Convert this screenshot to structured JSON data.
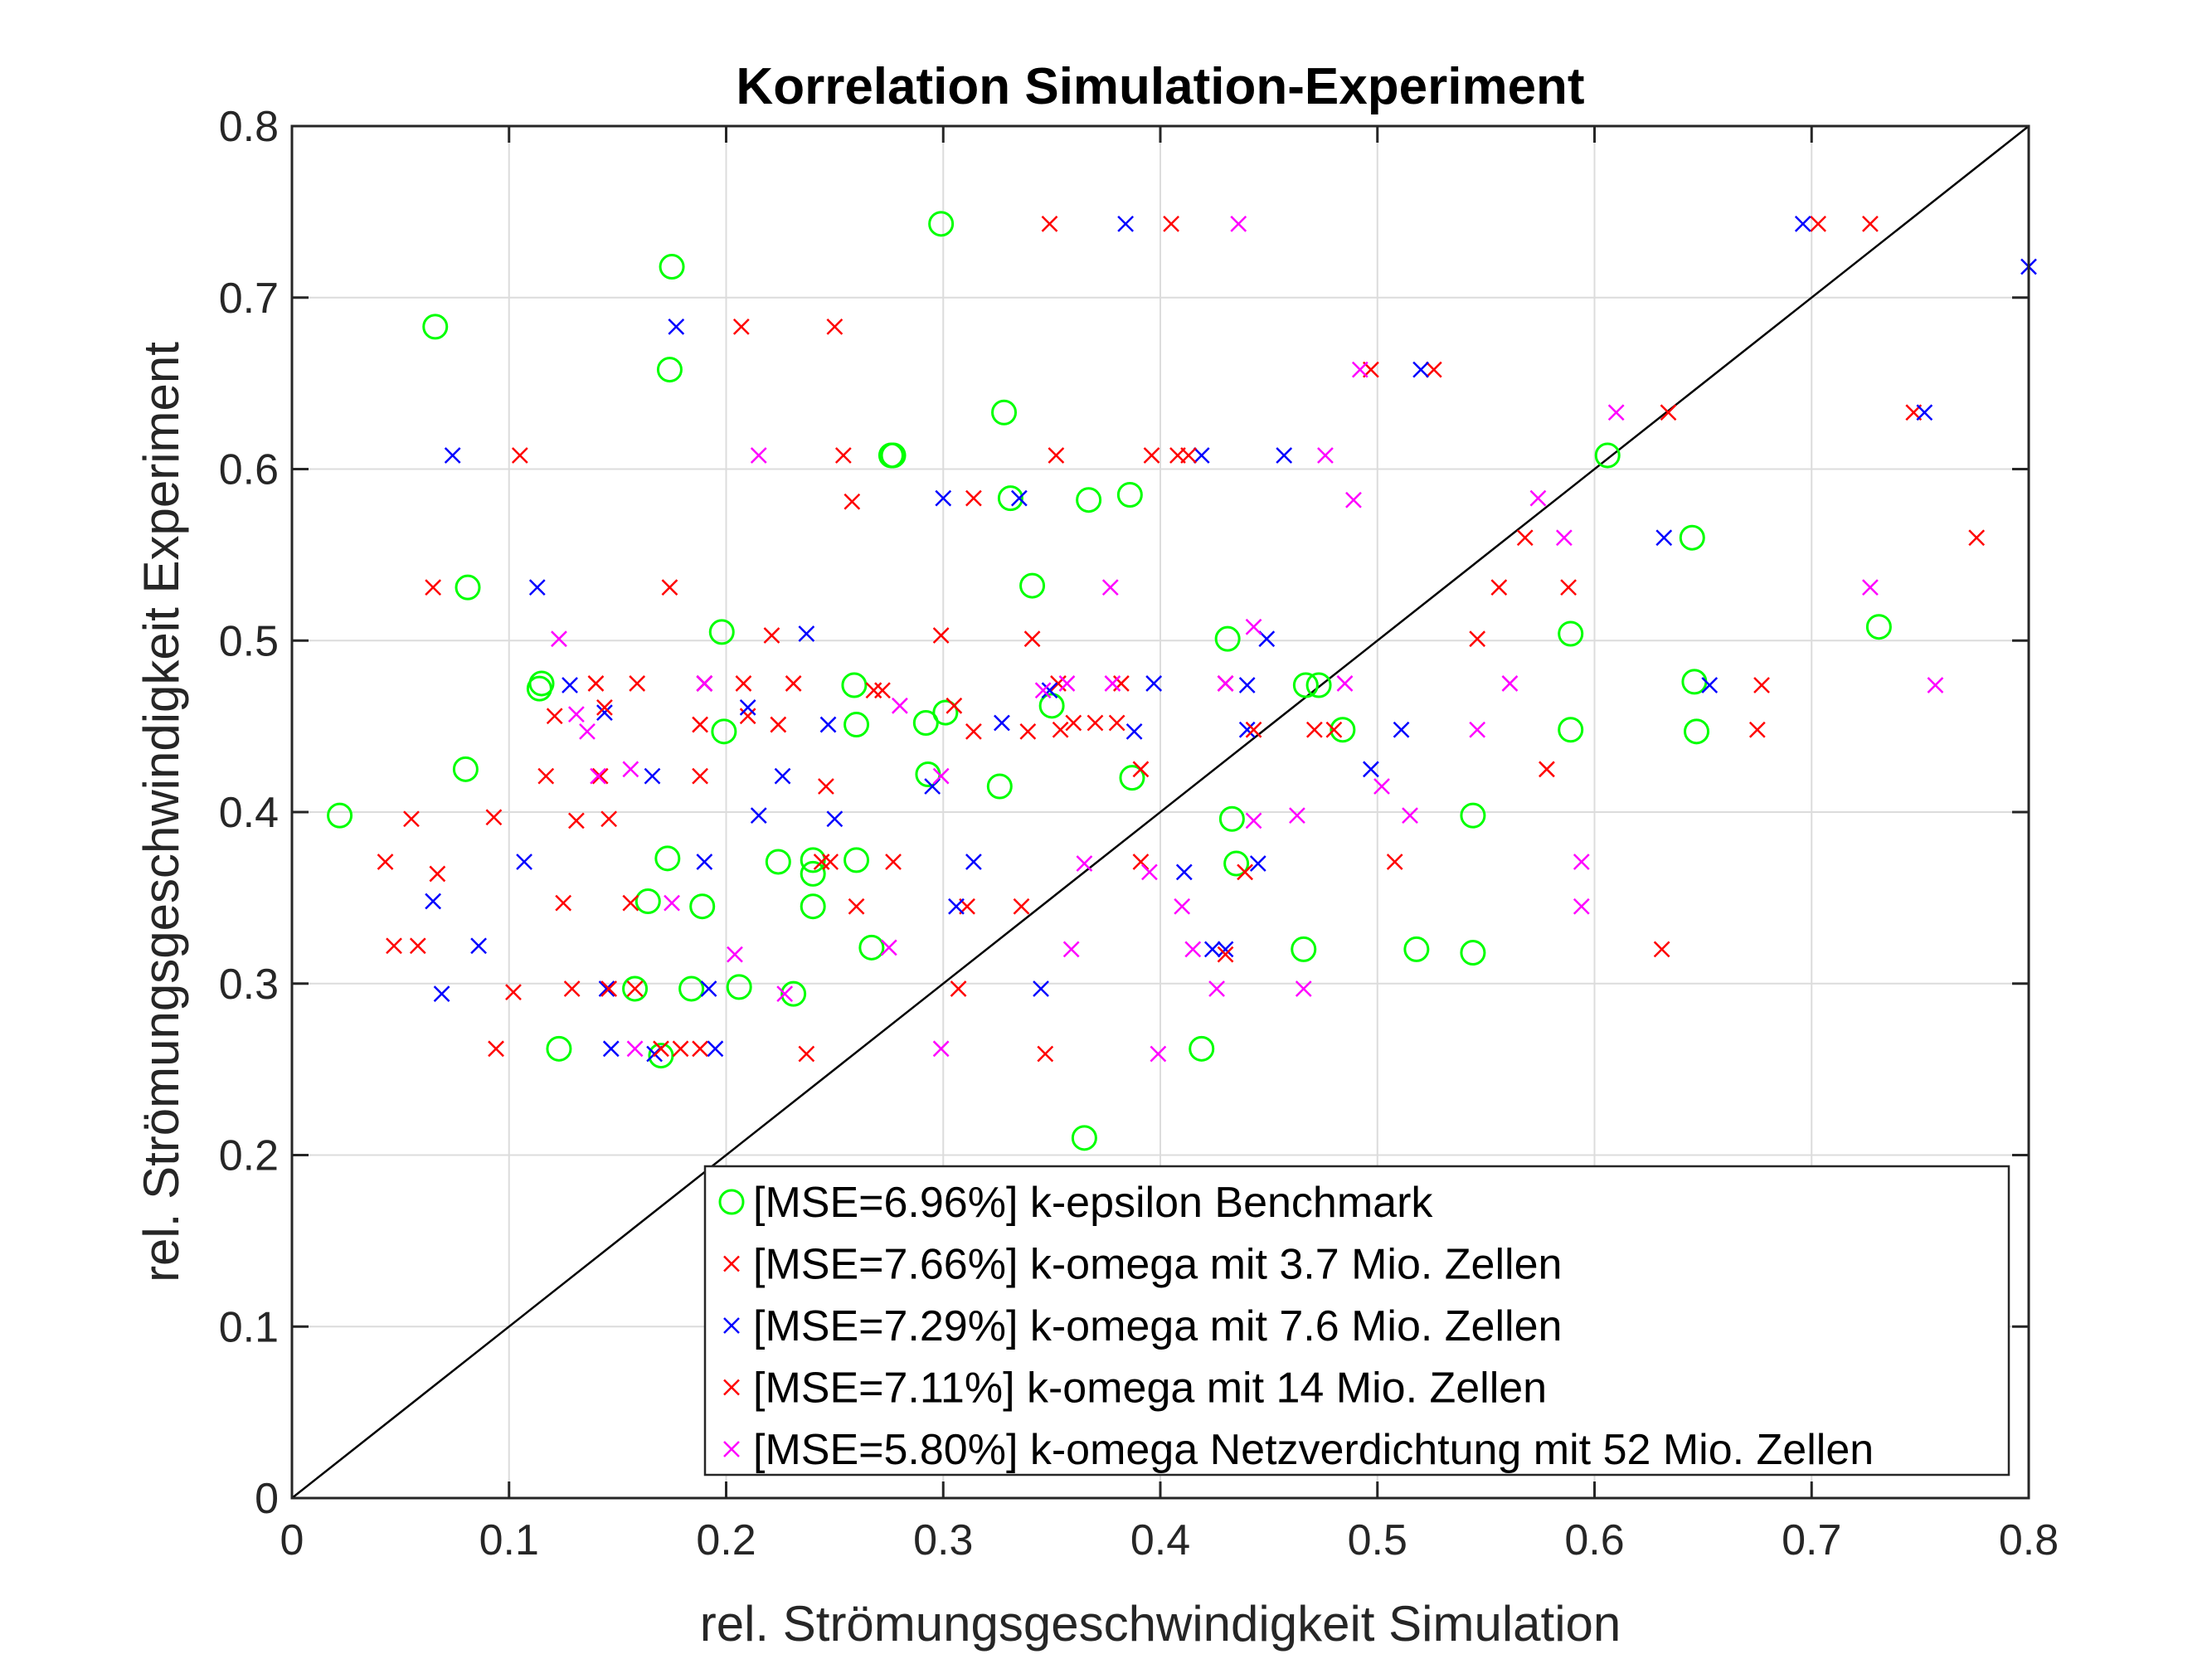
{
  "chart_data": {
    "type": "scatter",
    "title": "Korrelation Simulation-Experiment",
    "xlabel": "rel. Strömungsgeschwindigkeit Simulation",
    "ylabel": "rel. Strömungsgeschwindigkeit Experiment",
    "xlim": [
      0,
      0.8
    ],
    "ylim": [
      0,
      0.8
    ],
    "xticks": [
      "0",
      "0.1",
      "0.2",
      "0.3",
      "0.4",
      "0.5",
      "0.6",
      "0.7",
      "0.8"
    ],
    "yticks": [
      "0",
      "0.1",
      "0.2",
      "0.3",
      "0.4",
      "0.5",
      "0.6",
      "0.7",
      "0.8"
    ],
    "grid": true,
    "legend_placement": "bottom-right",
    "reference_line": {
      "from": [
        0,
        0
      ],
      "to": [
        0.8,
        0.8
      ],
      "color": "#000000"
    },
    "series": [
      {
        "name": "[MSE=6.96%] k-epsilon Benchmark",
        "marker": "circle",
        "color": "#00ff00",
        "points": [
          [
            0.022,
            0.398
          ],
          [
            0.066,
            0.683
          ],
          [
            0.081,
            0.531
          ],
          [
            0.08,
            0.425
          ],
          [
            0.115,
            0.475
          ],
          [
            0.114,
            0.472
          ],
          [
            0.123,
            0.262
          ],
          [
            0.158,
            0.297
          ],
          [
            0.164,
            0.348
          ],
          [
            0.17,
            0.258
          ],
          [
            0.173,
            0.373
          ],
          [
            0.174,
            0.658
          ],
          [
            0.175,
            0.718
          ],
          [
            0.184,
            0.297
          ],
          [
            0.189,
            0.345
          ],
          [
            0.198,
            0.505
          ],
          [
            0.199,
            0.447
          ],
          [
            0.206,
            0.298
          ],
          [
            0.224,
            0.371
          ],
          [
            0.231,
            0.294
          ],
          [
            0.24,
            0.364
          ],
          [
            0.24,
            0.345
          ],
          [
            0.24,
            0.372
          ],
          [
            0.259,
            0.474
          ],
          [
            0.26,
            0.451
          ],
          [
            0.26,
            0.372
          ],
          [
            0.267,
            0.321
          ],
          [
            0.276,
            0.608
          ],
          [
            0.277,
            0.608
          ],
          [
            0.292,
            0.452
          ],
          [
            0.293,
            0.422
          ],
          [
            0.299,
            0.743
          ],
          [
            0.301,
            0.458
          ],
          [
            0.326,
            0.415
          ],
          [
            0.328,
            0.633
          ],
          [
            0.331,
            0.583
          ],
          [
            0.341,
            0.532
          ],
          [
            0.35,
            0.462
          ],
          [
            0.365,
            0.21
          ],
          [
            0.367,
            0.582
          ],
          [
            0.386,
            0.585
          ],
          [
            0.387,
            0.42
          ],
          [
            0.419,
            0.262
          ],
          [
            0.431,
            0.501
          ],
          [
            0.433,
            0.396
          ],
          [
            0.435,
            0.37
          ],
          [
            0.466,
            0.32
          ],
          [
            0.467,
            0.474
          ],
          [
            0.473,
            0.474
          ],
          [
            0.484,
            0.448
          ],
          [
            0.518,
            0.32
          ],
          [
            0.544,
            0.398
          ],
          [
            0.544,
            0.318
          ],
          [
            0.589,
            0.504
          ],
          [
            0.589,
            0.448
          ],
          [
            0.606,
            0.608
          ],
          [
            0.645,
            0.56
          ],
          [
            0.646,
            0.476
          ],
          [
            0.647,
            0.447
          ],
          [
            0.731,
            0.508
          ]
        ]
      },
      {
        "name": "[MSE=7.66%] k-omega mit 3.7 Mio. Zellen",
        "marker": "x",
        "color": "#ff0000",
        "points": [
          [
            0.043,
            0.371
          ],
          [
            0.058,
            0.322
          ],
          [
            0.065,
            0.531
          ],
          [
            0.094,
            0.262
          ],
          [
            0.102,
            0.295
          ],
          [
            0.117,
            0.421
          ],
          [
            0.125,
            0.347
          ],
          [
            0.131,
            0.395
          ],
          [
            0.142,
            0.421
          ],
          [
            0.146,
            0.396
          ],
          [
            0.159,
            0.475
          ],
          [
            0.158,
            0.297
          ],
          [
            0.174,
            0.531
          ],
          [
            0.188,
            0.262
          ],
          [
            0.188,
            0.421
          ],
          [
            0.207,
            0.683
          ],
          [
            0.21,
            0.456
          ],
          [
            0.224,
            0.451
          ],
          [
            0.237,
            0.259
          ],
          [
            0.246,
            0.415
          ],
          [
            0.25,
            0.683
          ],
          [
            0.258,
            0.581
          ],
          [
            0.268,
            0.471
          ],
          [
            0.277,
            0.371
          ],
          [
            0.305,
            0.462
          ],
          [
            0.311,
            0.345
          ],
          [
            0.314,
            0.583
          ],
          [
            0.339,
            0.447
          ],
          [
            0.347,
            0.259
          ],
          [
            0.353,
            0.475
          ],
          [
            0.36,
            0.452
          ],
          [
            0.38,
            0.452
          ],
          [
            0.391,
            0.371
          ],
          [
            0.396,
            0.608
          ],
          [
            0.408,
            0.608
          ],
          [
            0.43,
            0.475
          ],
          [
            0.439,
            0.365
          ],
          [
            0.471,
            0.448
          ],
          [
            0.497,
            0.658
          ],
          [
            0.526,
            0.658
          ],
          [
            0.556,
            0.531
          ],
          [
            0.578,
            0.425
          ],
          [
            0.631,
            0.32
          ],
          [
            0.677,
            0.474
          ],
          [
            0.703,
            0.743
          ],
          [
            0.747,
            0.633
          ]
        ]
      },
      {
        "name": "[MSE=7.29%] k-omega mit 7.6 Mio. Zellen",
        "marker": "x",
        "color": "#0000ff",
        "points": [
          [
            0.069,
            0.294
          ],
          [
            0.065,
            0.348
          ],
          [
            0.074,
            0.608
          ],
          [
            0.086,
            0.322
          ],
          [
            0.107,
            0.371
          ],
          [
            0.113,
            0.531
          ],
          [
            0.128,
            0.474
          ],
          [
            0.144,
            0.458
          ],
          [
            0.145,
            0.297
          ],
          [
            0.147,
            0.262
          ],
          [
            0.166,
            0.421
          ],
          [
            0.167,
            0.259
          ],
          [
            0.177,
            0.683
          ],
          [
            0.19,
            0.475
          ],
          [
            0.19,
            0.371
          ],
          [
            0.192,
            0.297
          ],
          [
            0.195,
            0.262
          ],
          [
            0.21,
            0.461
          ],
          [
            0.215,
            0.398
          ],
          [
            0.226,
            0.421
          ],
          [
            0.237,
            0.504
          ],
          [
            0.247,
            0.451
          ],
          [
            0.25,
            0.396
          ],
          [
            0.295,
            0.415
          ],
          [
            0.3,
            0.583
          ],
          [
            0.306,
            0.345
          ],
          [
            0.314,
            0.371
          ],
          [
            0.327,
            0.452
          ],
          [
            0.335,
            0.583
          ],
          [
            0.345,
            0.297
          ],
          [
            0.349,
            0.471
          ],
          [
            0.384,
            0.743
          ],
          [
            0.388,
            0.447
          ],
          [
            0.397,
            0.475
          ],
          [
            0.411,
            0.365
          ],
          [
            0.419,
            0.608
          ],
          [
            0.424,
            0.32
          ],
          [
            0.43,
            0.32
          ],
          [
            0.44,
            0.474
          ],
          [
            0.44,
            0.448
          ],
          [
            0.445,
            0.37
          ],
          [
            0.449,
            0.501
          ],
          [
            0.457,
            0.608
          ],
          [
            0.497,
            0.425
          ],
          [
            0.511,
            0.448
          ],
          [
            0.52,
            0.658
          ],
          [
            0.632,
            0.56
          ],
          [
            0.653,
            0.474
          ],
          [
            0.696,
            0.743
          ],
          [
            0.752,
            0.633
          ],
          [
            0.8,
            0.718
          ]
        ]
      },
      {
        "name": "[MSE=7.11%] k-omega mit 14 Mio. Zellen",
        "marker": "x",
        "color": "#ff0000",
        "points": [
          [
            0.047,
            0.322
          ],
          [
            0.055,
            0.396
          ],
          [
            0.067,
            0.364
          ],
          [
            0.093,
            0.397
          ],
          [
            0.105,
            0.608
          ],
          [
            0.121,
            0.456
          ],
          [
            0.129,
            0.297
          ],
          [
            0.14,
            0.475
          ],
          [
            0.144,
            0.461
          ],
          [
            0.146,
            0.297
          ],
          [
            0.156,
            0.347
          ],
          [
            0.17,
            0.262
          ],
          [
            0.179,
            0.262
          ],
          [
            0.188,
            0.451
          ],
          [
            0.19,
            0.475
          ],
          [
            0.208,
            0.475
          ],
          [
            0.221,
            0.503
          ],
          [
            0.231,
            0.475
          ],
          [
            0.244,
            0.371
          ],
          [
            0.248,
            0.371
          ],
          [
            0.254,
            0.608
          ],
          [
            0.26,
            0.345
          ],
          [
            0.272,
            0.471
          ],
          [
            0.299,
            0.503
          ],
          [
            0.307,
            0.297
          ],
          [
            0.314,
            0.447
          ],
          [
            0.336,
            0.345
          ],
          [
            0.341,
            0.501
          ],
          [
            0.349,
            0.743
          ],
          [
            0.352,
            0.608
          ],
          [
            0.354,
            0.448
          ],
          [
            0.37,
            0.452
          ],
          [
            0.382,
            0.475
          ],
          [
            0.391,
            0.425
          ],
          [
            0.405,
            0.743
          ],
          [
            0.413,
            0.608
          ],
          [
            0.43,
            0.317
          ],
          [
            0.443,
            0.448
          ],
          [
            0.48,
            0.448
          ],
          [
            0.508,
            0.371
          ],
          [
            0.546,
            0.501
          ],
          [
            0.568,
            0.56
          ],
          [
            0.588,
            0.531
          ],
          [
            0.634,
            0.633
          ],
          [
            0.675,
            0.448
          ],
          [
            0.727,
            0.743
          ],
          [
            0.776,
            0.56
          ]
        ]
      },
      {
        "name": "[MSE=5.80%] k-omega Netzverdichtung mit 52 Mio. Zellen",
        "marker": "x",
        "color": "#ff00ff",
        "points": [
          [
            0.123,
            0.501
          ],
          [
            0.131,
            0.457
          ],
          [
            0.136,
            0.447
          ],
          [
            0.141,
            0.421
          ],
          [
            0.156,
            0.425
          ],
          [
            0.158,
            0.262
          ],
          [
            0.175,
            0.347
          ],
          [
            0.19,
            0.475
          ],
          [
            0.204,
            0.317
          ],
          [
            0.227,
            0.294
          ],
          [
            0.215,
            0.608
          ],
          [
            0.275,
            0.321
          ],
          [
            0.28,
            0.462
          ],
          [
            0.299,
            0.262
          ],
          [
            0.299,
            0.421
          ],
          [
            0.346,
            0.471
          ],
          [
            0.357,
            0.475
          ],
          [
            0.365,
            0.37
          ],
          [
            0.359,
            0.32
          ],
          [
            0.377,
            0.531
          ],
          [
            0.378,
            0.475
          ],
          [
            0.395,
            0.365
          ],
          [
            0.399,
            0.259
          ],
          [
            0.41,
            0.345
          ],
          [
            0.415,
            0.32
          ],
          [
            0.426,
            0.297
          ],
          [
            0.43,
            0.475
          ],
          [
            0.436,
            0.743
          ],
          [
            0.443,
            0.508
          ],
          [
            0.443,
            0.395
          ],
          [
            0.463,
            0.398
          ],
          [
            0.466,
            0.297
          ],
          [
            0.476,
            0.608
          ],
          [
            0.485,
            0.475
          ],
          [
            0.489,
            0.582
          ],
          [
            0.492,
            0.658
          ],
          [
            0.502,
            0.415
          ],
          [
            0.515,
            0.398
          ],
          [
            0.546,
            0.448
          ],
          [
            0.561,
            0.475
          ],
          [
            0.574,
            0.583
          ],
          [
            0.586,
            0.56
          ],
          [
            0.594,
            0.371
          ],
          [
            0.594,
            0.345
          ],
          [
            0.61,
            0.633
          ],
          [
            0.727,
            0.531
          ],
          [
            0.757,
            0.474
          ]
        ]
      }
    ]
  }
}
